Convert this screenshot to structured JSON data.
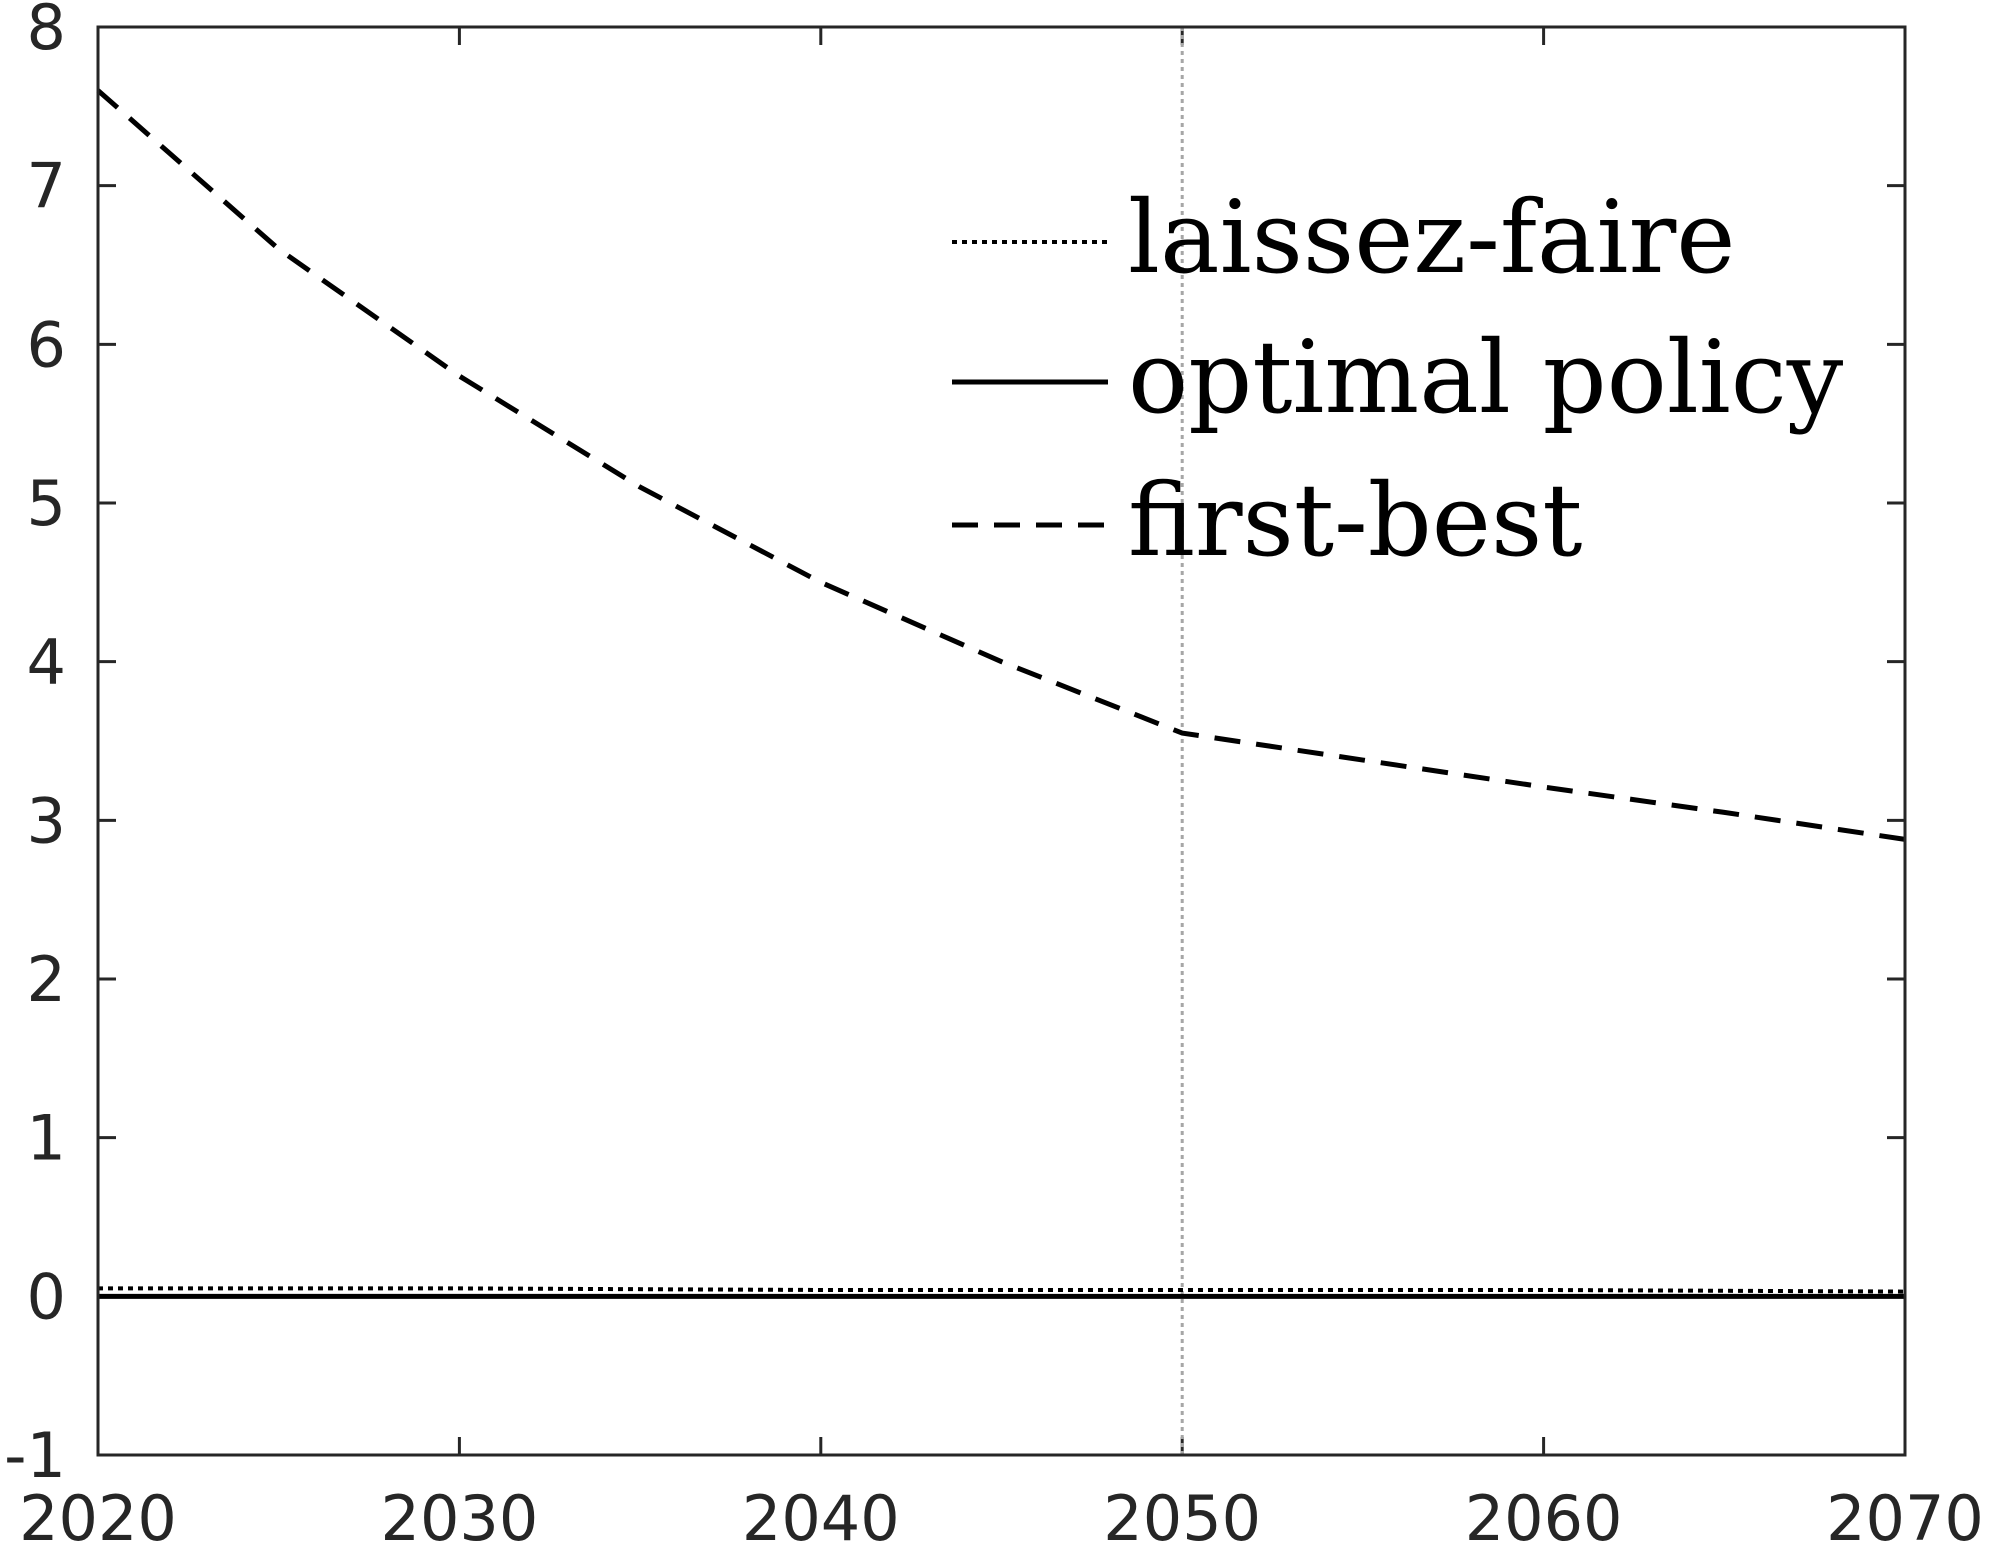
{
  "chart_data": {
    "type": "line",
    "title": "",
    "xlabel": "",
    "ylabel": "",
    "xlim": [
      2020,
      2070
    ],
    "ylim": [
      -1,
      8
    ],
    "xticks": [
      2020,
      2030,
      2040,
      2050,
      2060,
      2070
    ],
    "yticks": [
      -1,
      0,
      1,
      2,
      3,
      4,
      5,
      6,
      7,
      8
    ],
    "grid": false,
    "legend_position": "top-right",
    "reference_line": {
      "x": 2050,
      "style": "dotted",
      "color": "#a6a6a6"
    },
    "series": [
      {
        "name": "laissez-faire",
        "style": "dotted",
        "color": "#000000",
        "x": [
          2020,
          2030,
          2040,
          2050,
          2060,
          2070
        ],
        "y": [
          0.05,
          0.05,
          0.04,
          0.04,
          0.04,
          0.03
        ]
      },
      {
        "name": "optimal policy",
        "style": "solid",
        "color": "#000000",
        "x": [
          2020,
          2030,
          2040,
          2050,
          2060,
          2070
        ],
        "y": [
          0,
          0,
          0,
          0,
          0,
          0
        ]
      },
      {
        "name": "first-best",
        "style": "dashed",
        "color": "#000000",
        "x": [
          2020,
          2022,
          2025,
          2030,
          2035,
          2040,
          2045,
          2050,
          2055,
          2060,
          2065,
          2070
        ],
        "y": [
          7.6,
          7.2,
          6.6,
          5.8,
          5.1,
          4.5,
          4.0,
          3.55,
          3.38,
          3.21,
          3.05,
          2.88
        ]
      }
    ]
  }
}
